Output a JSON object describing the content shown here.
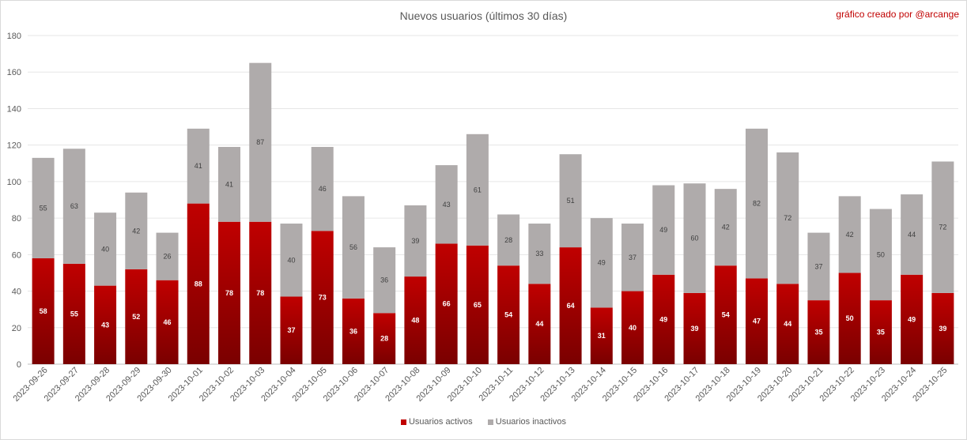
{
  "chart_data": {
    "type": "bar",
    "stacked": true,
    "title": "Nuevos usuarios (últimos 30 días)",
    "credit": "gráfico creado por @arcange",
    "xlabel": "",
    "ylabel": "",
    "ylim": [
      0,
      180
    ],
    "yticks": [
      0,
      20,
      40,
      60,
      80,
      100,
      120,
      140,
      160,
      180
    ],
    "grid": true,
    "legend_position": "bottom",
    "categories": [
      "2023-09-26",
      "2023-09-27",
      "2023-09-28",
      "2023-09-29",
      "2023-09-30",
      "2023-10-01",
      "2023-10-02",
      "2023-10-03",
      "2023-10-04",
      "2023-10-05",
      "2023-10-06",
      "2023-10-07",
      "2023-10-08",
      "2023-10-09",
      "2023-10-10",
      "2023-10-11",
      "2023-10-12",
      "2023-10-13",
      "2023-10-14",
      "2023-10-15",
      "2023-10-16",
      "2023-10-17",
      "2023-10-18",
      "2023-10-19",
      "2023-10-20",
      "2023-10-21",
      "2023-10-22",
      "2023-10-23",
      "2023-10-24",
      "2023-10-25"
    ],
    "series": [
      {
        "name": "Usuarios activos",
        "color": "#c00000",
        "values": [
          58,
          55,
          43,
          52,
          46,
          88,
          78,
          78,
          37,
          73,
          36,
          28,
          48,
          66,
          65,
          54,
          44,
          64,
          31,
          40,
          49,
          39,
          54,
          47,
          44,
          35,
          50,
          35,
          49,
          39
        ]
      },
      {
        "name": "Usuarios inactivos",
        "color": "#afabab",
        "values": [
          55,
          63,
          40,
          42,
          26,
          41,
          41,
          87,
          40,
          46,
          56,
          36,
          39,
          43,
          61,
          28,
          33,
          51,
          49,
          37,
          49,
          60,
          42,
          82,
          72,
          37,
          42,
          50,
          44,
          72
        ]
      }
    ]
  }
}
